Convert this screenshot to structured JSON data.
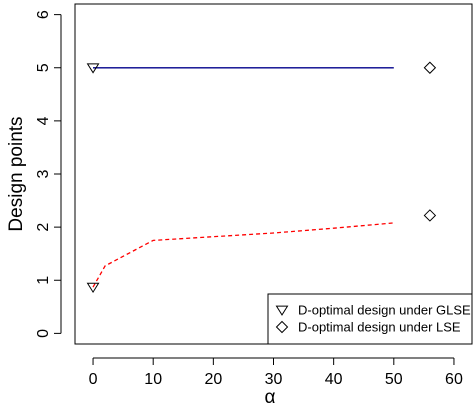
{
  "chart_data": {
    "type": "line",
    "xlabel": "α",
    "ylabel": "Design points",
    "xlim": [
      -3,
      63
    ],
    "ylim": [
      -0.2,
      6.2
    ],
    "x_ticks": [
      "0",
      "10",
      "20",
      "30",
      "40",
      "50",
      "60"
    ],
    "y_ticks": [
      "0",
      "1",
      "2",
      "3",
      "4",
      "5",
      "6"
    ],
    "grid": false,
    "legend_position": "bottom-right",
    "lines": [
      {
        "color": "#00008b",
        "style": "solid",
        "x": [
          0,
          50
        ],
        "y": [
          5,
          5
        ]
      },
      {
        "color": "#ff0000",
        "style": "dashed",
        "x": [
          0,
          2,
          5,
          10,
          20,
          30,
          40,
          50
        ],
        "y": [
          0.87,
          1.27,
          1.45,
          1.75,
          1.82,
          1.89,
          1.98,
          2.08
        ]
      }
    ],
    "points": [
      {
        "marker": "triangle-down",
        "x": 0,
        "y": 5.0
      },
      {
        "marker": "triangle-down",
        "x": 0,
        "y": 0.87
      },
      {
        "marker": "diamond",
        "x": 56,
        "y": 5.0
      },
      {
        "marker": "diamond",
        "x": 56,
        "y": 2.22
      }
    ],
    "legend": [
      {
        "marker": "triangle-down",
        "label": "D-optimal design under GLSE"
      },
      {
        "marker": "diamond",
        "label": "D-optimal design under LSE"
      }
    ]
  }
}
